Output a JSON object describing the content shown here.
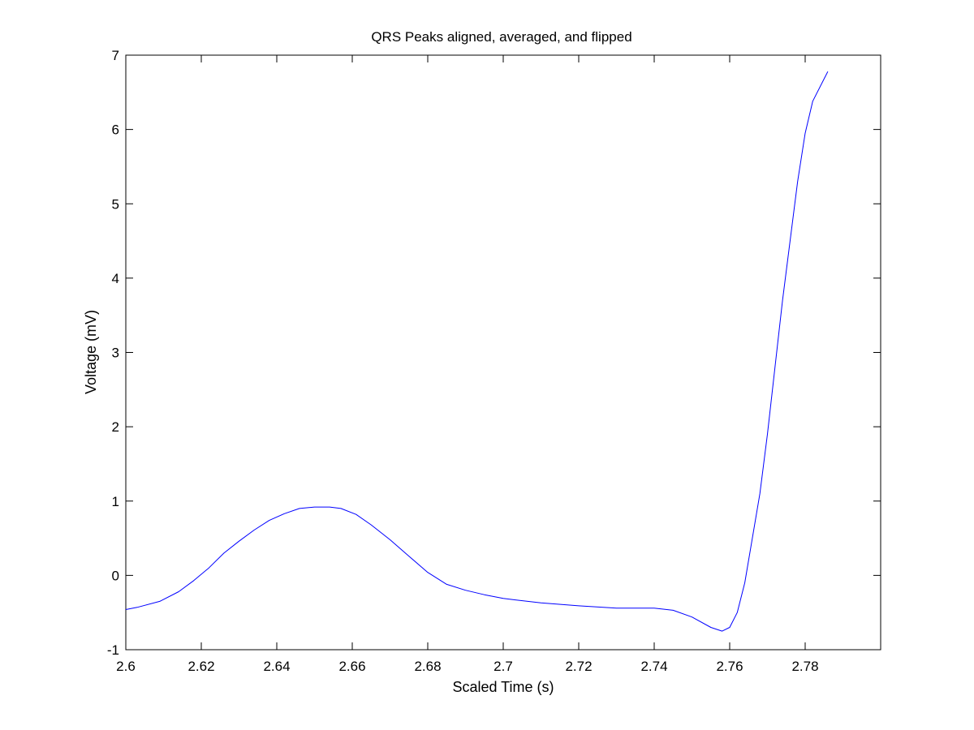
{
  "chart_data": {
    "type": "line",
    "title": "QRS Peaks aligned, averaged, and flipped",
    "xlabel": "Scaled Time (s)",
    "ylabel": "Voltage (mV)",
    "xlim": [
      2.6,
      2.8
    ],
    "ylim": [
      -1,
      7
    ],
    "xticks": [
      2.6,
      2.62,
      2.64,
      2.66,
      2.68,
      2.7,
      2.72,
      2.74,
      2.76,
      2.78
    ],
    "xtick_labels": [
      "2.6",
      "2.62",
      "2.64",
      "2.66",
      "2.68",
      "2.7",
      "2.72",
      "2.74",
      "2.76",
      "2.78"
    ],
    "yticks": [
      -1,
      0,
      1,
      2,
      3,
      4,
      5,
      6,
      7
    ],
    "ytick_labels": [
      "-1",
      "0",
      "1",
      "2",
      "3",
      "4",
      "5",
      "6",
      "7"
    ],
    "grid": false,
    "line_color": "#0000ff",
    "series": [
      {
        "x": [
          2.6,
          2.603,
          2.609,
          2.614,
          2.618,
          2.622,
          2.626,
          2.63,
          2.634,
          2.638,
          2.642,
          2.646,
          2.65,
          2.654,
          2.657,
          2.661,
          2.665,
          2.67,
          2.675,
          2.68,
          2.685,
          2.69,
          2.695,
          2.7,
          2.71,
          2.72,
          2.73,
          2.74,
          2.745,
          2.75,
          2.755,
          2.758,
          2.76,
          2.762,
          2.764,
          2.766,
          2.768,
          2.77,
          2.772,
          2.774,
          2.776,
          2.778,
          2.78,
          2.782,
          2.786
        ],
        "y": [
          -0.46,
          -0.43,
          -0.35,
          -0.22,
          -0.07,
          0.1,
          0.3,
          0.46,
          0.61,
          0.74,
          0.83,
          0.9,
          0.92,
          0.92,
          0.9,
          0.82,
          0.68,
          0.48,
          0.26,
          0.04,
          -0.12,
          -0.2,
          -0.26,
          -0.31,
          -0.37,
          -0.41,
          -0.44,
          -0.44,
          -0.47,
          -0.56,
          -0.7,
          -0.75,
          -0.7,
          -0.5,
          -0.1,
          0.5,
          1.1,
          1.9,
          2.8,
          3.7,
          4.5,
          5.3,
          5.95,
          6.38,
          6.78
        ]
      }
    ]
  }
}
